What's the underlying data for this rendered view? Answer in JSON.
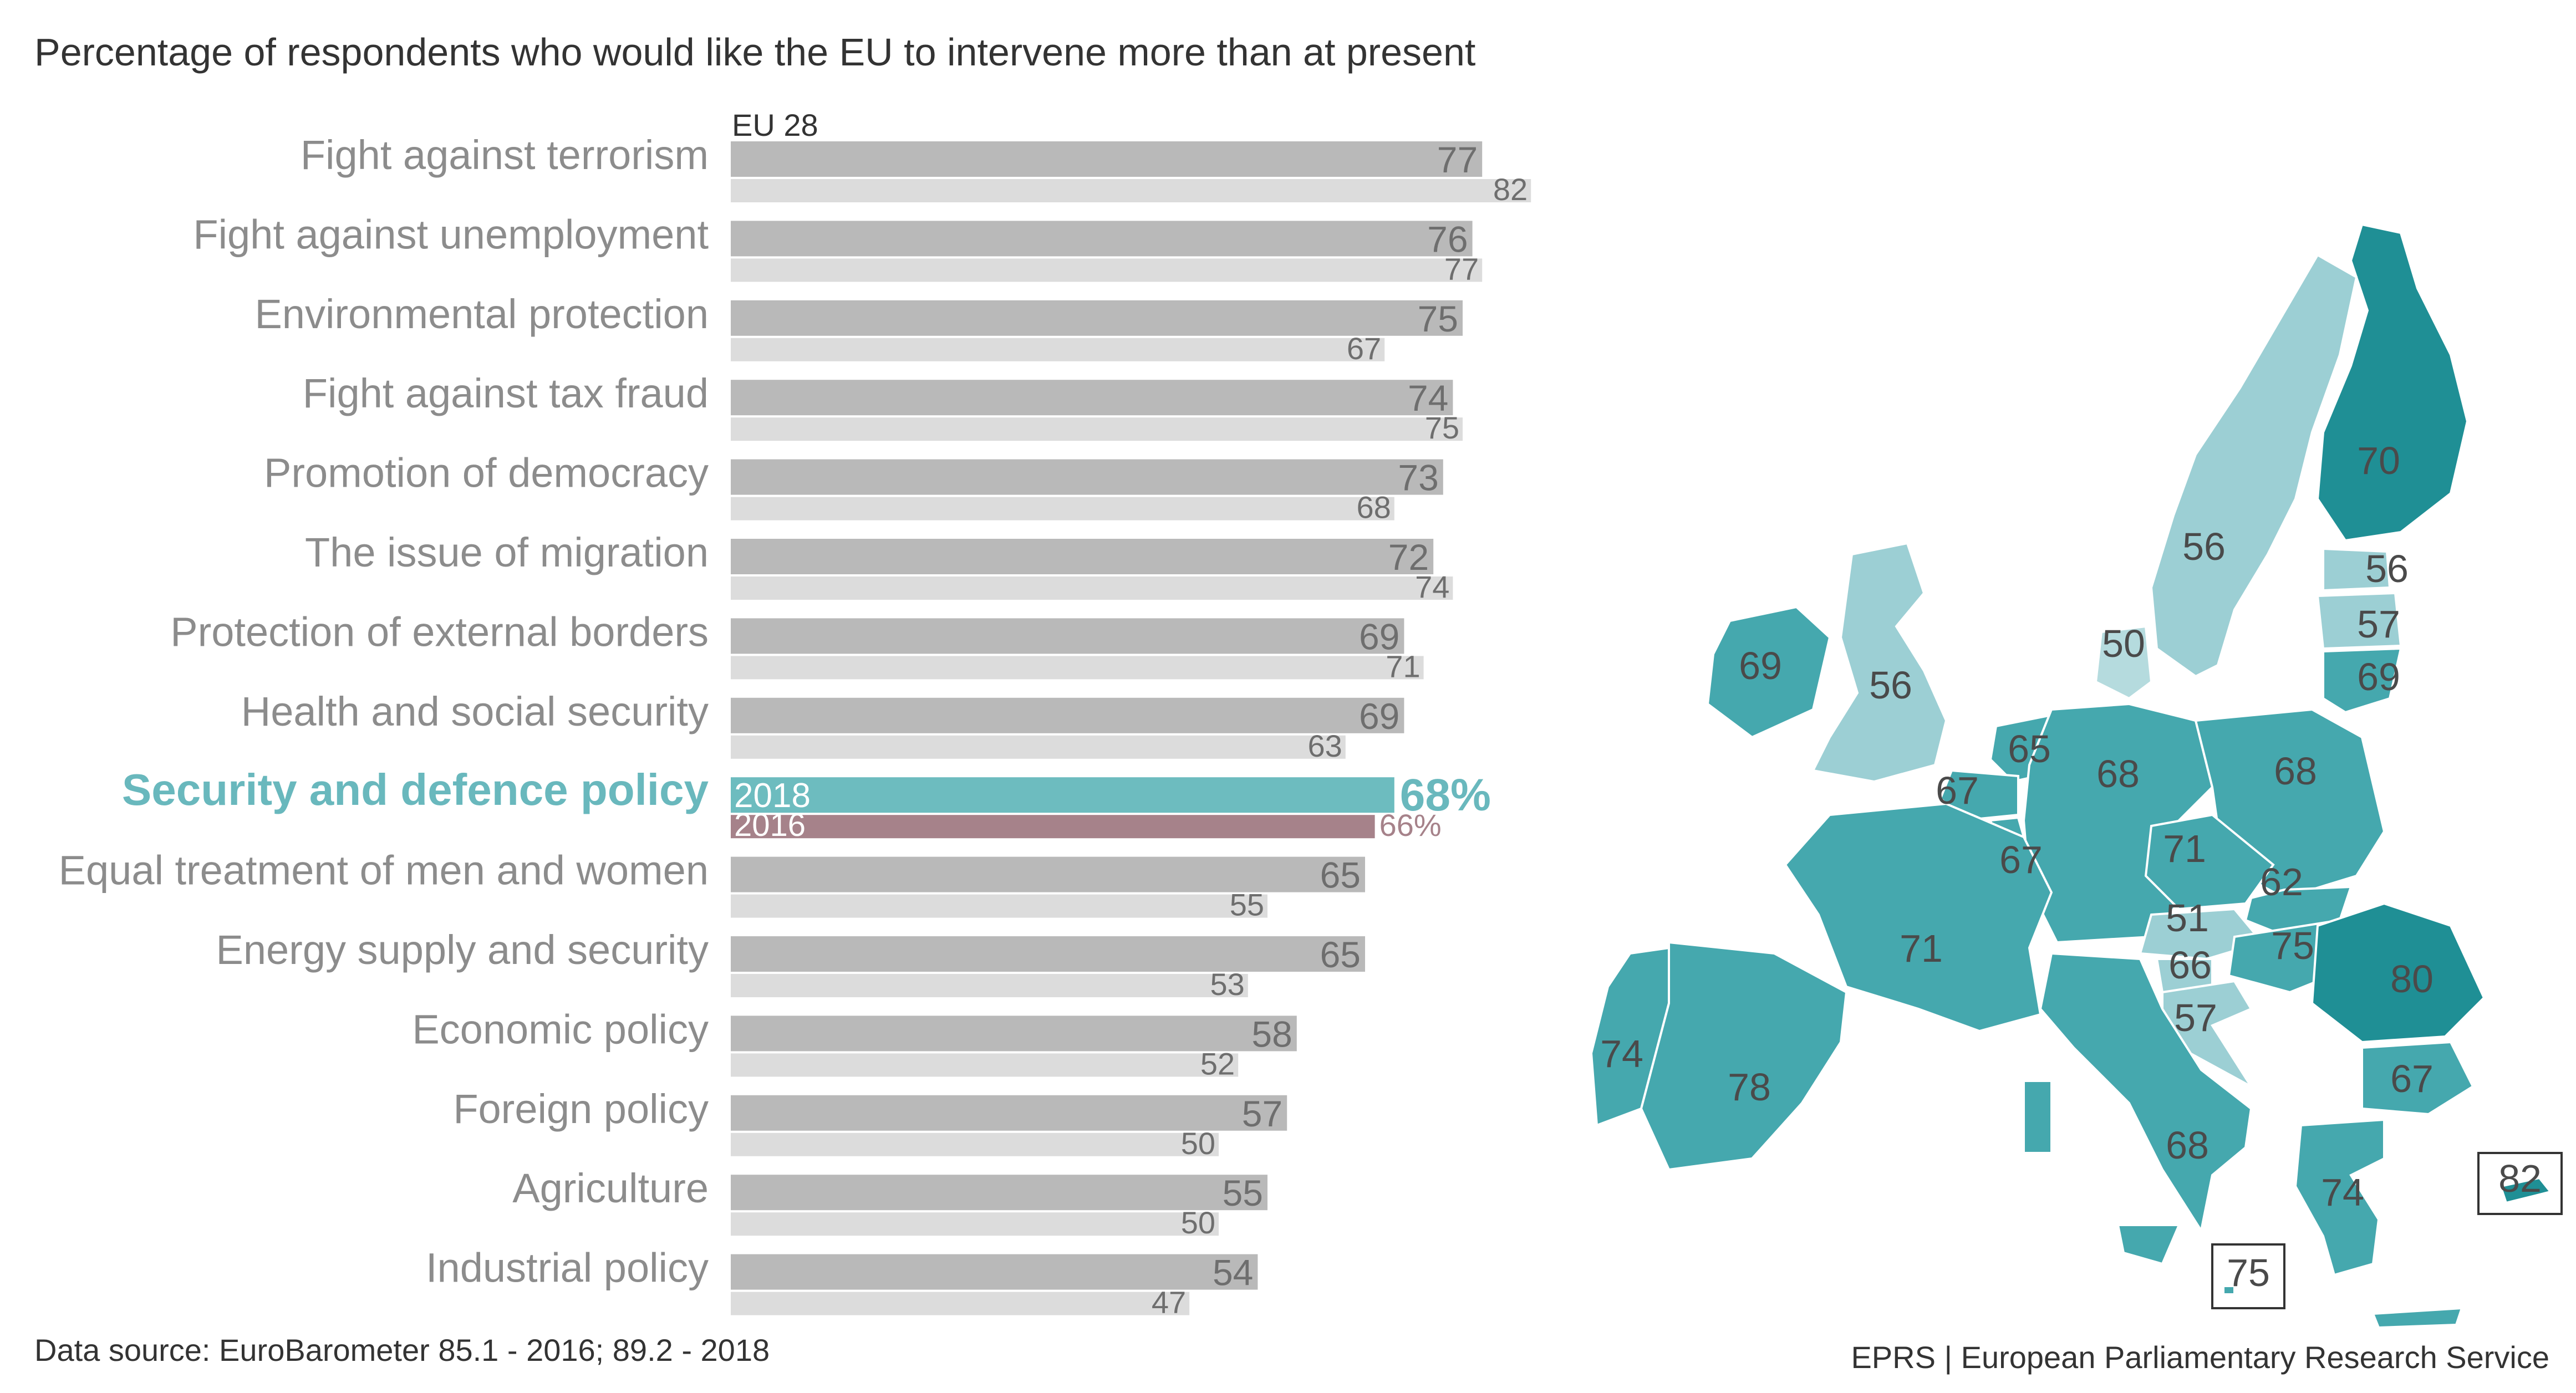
{
  "title": "Percentage of respondents who would like the EU to intervene more than at present",
  "source": "Data source: EuroBarometer 85.1 - 2016;  89.2 - 2018",
  "credit": "EPRS | European Parliamentary Research Service",
  "eu_label": "EU 28",
  "colors": {
    "bar_2018": "#b9b9b9",
    "bar_2016": "#dcdcdc",
    "highlight_2018": "#6dbcbf",
    "highlight_2016": "#a6828a",
    "highlight_text": "#69b8bd",
    "highlight_2016_text": "#a6828a",
    "map_dark": "#1f8f95",
    "map_mid": "#45a8ae",
    "map_light": "#9ccfd4",
    "map_lighter": "#b5dbde"
  },
  "chart_data": {
    "type": "bar",
    "orientation": "horizontal",
    "categories": [
      "Fight against terrorism",
      "Fight against unemployment",
      "Environmental protection",
      "Fight against tax fraud",
      "Promotion of democracy",
      "The issue of migration",
      "Protection of external borders",
      "Health and social security",
      "Security and defence policy",
      "Equal treatment of men and women",
      "Energy supply and security",
      "Economic policy",
      "Foreign policy",
      "Agriculture",
      "Industrial policy"
    ],
    "series": [
      {
        "name": "2018",
        "values": [
          77,
          76,
          75,
          74,
          73,
          72,
          69,
          69,
          68,
          65,
          65,
          58,
          57,
          55,
          54
        ]
      },
      {
        "name": "2016",
        "values": [
          82,
          77,
          67,
          75,
          68,
          74,
          71,
          63,
          66,
          55,
          53,
          52,
          50,
          50,
          47
        ]
      }
    ],
    "highlight": {
      "category": "Security and defence policy",
      "label_2018": "2018",
      "label_2016": "2016",
      "value_2018": "68%",
      "value_2016": "66%"
    },
    "xlim": [
      0,
      100
    ]
  },
  "map": {
    "countries": [
      {
        "name": "Finland",
        "value": "70",
        "shade": "dark"
      },
      {
        "name": "Sweden",
        "value": "56",
        "shade": "light"
      },
      {
        "name": "Estonia",
        "value": "56",
        "shade": "light"
      },
      {
        "name": "Latvia",
        "value": "57",
        "shade": "light"
      },
      {
        "name": "Lithuania",
        "value": "69",
        "shade": "mid"
      },
      {
        "name": "Denmark",
        "value": "50",
        "shade": "lighter"
      },
      {
        "name": "Ireland",
        "value": "69",
        "shade": "mid"
      },
      {
        "name": "United Kingdom",
        "value": "56",
        "shade": "light"
      },
      {
        "name": "Netherlands",
        "value": "65",
        "shade": "mid"
      },
      {
        "name": "Belgium",
        "value": "67",
        "shade": "mid"
      },
      {
        "name": "Luxembourg",
        "value": "67",
        "shade": "mid"
      },
      {
        "name": "Germany",
        "value": "68",
        "shade": "mid"
      },
      {
        "name": "Poland",
        "value": "68",
        "shade": "mid"
      },
      {
        "name": "Czechia",
        "value": "71",
        "shade": "mid"
      },
      {
        "name": "Slovakia",
        "value": "62",
        "shade": "mid"
      },
      {
        "name": "Austria",
        "value": "51",
        "shade": "light"
      },
      {
        "name": "Hungary",
        "value": "75",
        "shade": "mid"
      },
      {
        "name": "Slovenia",
        "value": "66",
        "shade": "light"
      },
      {
        "name": "Croatia",
        "value": "57",
        "shade": "light"
      },
      {
        "name": "Romania",
        "value": "80",
        "shade": "dark"
      },
      {
        "name": "Bulgaria",
        "value": "67",
        "shade": "mid"
      },
      {
        "name": "France",
        "value": "71",
        "shade": "mid"
      },
      {
        "name": "Portugal",
        "value": "74",
        "shade": "mid"
      },
      {
        "name": "Spain",
        "value": "78",
        "shade": "mid"
      },
      {
        "name": "Italy",
        "value": "68",
        "shade": "mid"
      },
      {
        "name": "Greece",
        "value": "74",
        "shade": "mid"
      },
      {
        "name": "Cyprus",
        "value": "82",
        "shade": "dark"
      },
      {
        "name": "Malta",
        "value": "75",
        "shade": "mid"
      }
    ]
  }
}
